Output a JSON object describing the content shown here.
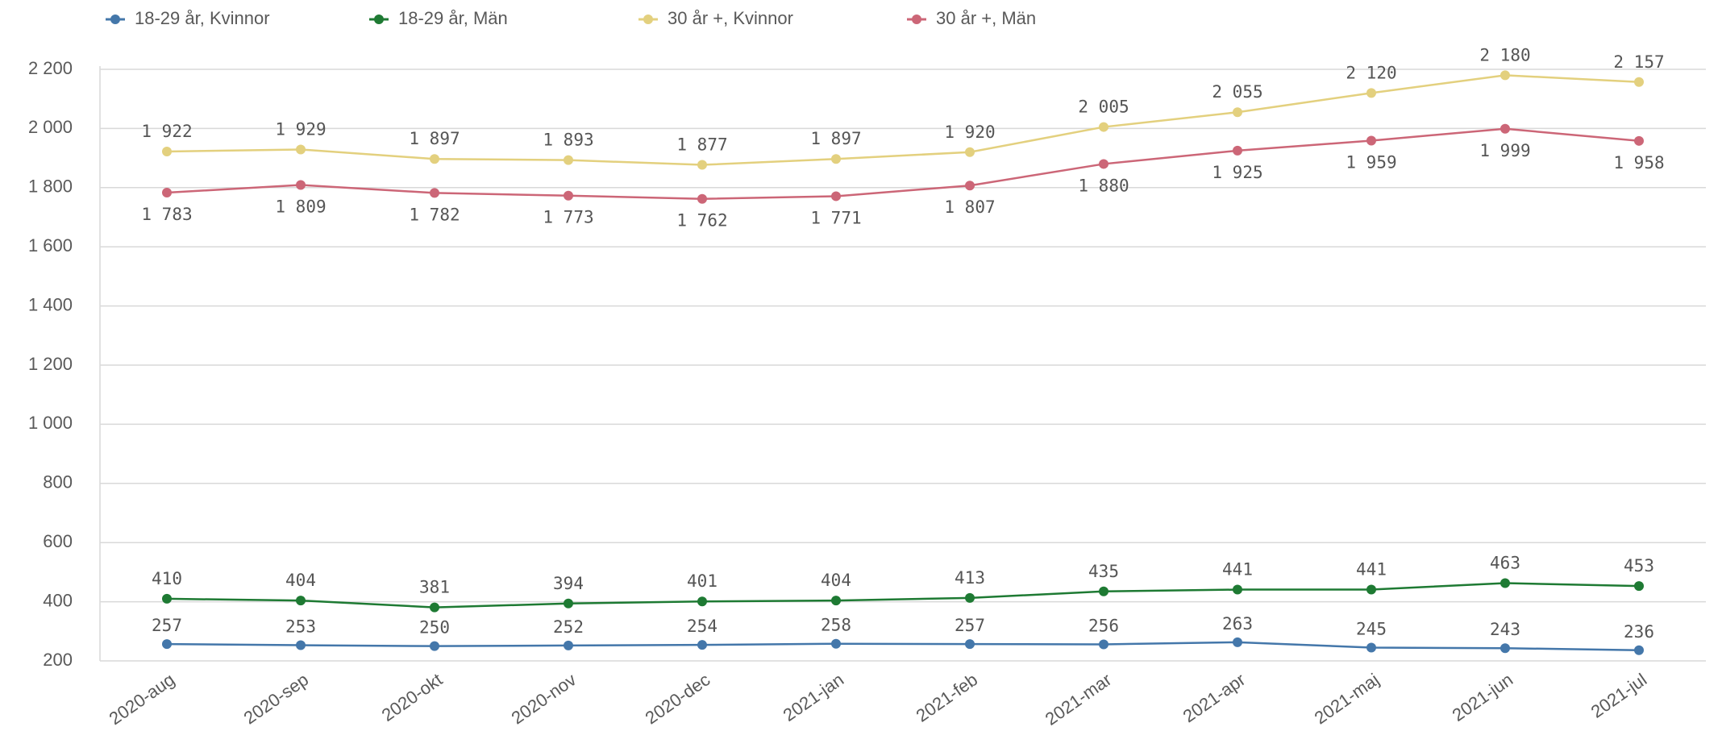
{
  "chart_data": {
    "type": "line",
    "categories": [
      "2020-aug",
      "2020-sep",
      "2020-okt",
      "2020-nov",
      "2020-dec",
      "2021-jan",
      "2021-feb",
      "2021-mar",
      "2021-apr",
      "2021-maj",
      "2021-jun",
      "2021-jul"
    ],
    "series": [
      {
        "name": "18-29 år, Kvinnor",
        "color": "#4477aa",
        "values": [
          257,
          253,
          250,
          252,
          254,
          258,
          257,
          256,
          263,
          245,
          243,
          236
        ]
      },
      {
        "name": "18-29 år, Män",
        "color": "#1e7a33",
        "values": [
          410,
          404,
          381,
          394,
          401,
          404,
          413,
          435,
          441,
          441,
          463,
          453
        ]
      },
      {
        "name": "30 år +, Kvinnor",
        "color": "#e3d07e",
        "values": [
          1922,
          1929,
          1897,
          1893,
          1877,
          1897,
          1920,
          2005,
          2055,
          2120,
          2180,
          2157
        ],
        "value_labels": [
          "1 922",
          "1 929",
          "1 897",
          "1 893",
          "1 877",
          "1 897",
          "1 920",
          "2 005",
          "2 055",
          "2 120",
          "2 180",
          "2 157"
        ]
      },
      {
        "name": "30 år +, Män",
        "color": "#cc6677",
        "values": [
          1783,
          1809,
          1782,
          1773,
          1762,
          1771,
          1807,
          1880,
          1925,
          1959,
          1999,
          1958
        ],
        "value_labels": [
          "1 783",
          "1 809",
          "1 782",
          "1 773",
          "1 762",
          "1 771",
          "1 807",
          "1 880",
          "1 925",
          "1 959",
          "1 999",
          "1 958"
        ]
      }
    ],
    "ylim": [
      200,
      2200
    ],
    "yticks": [
      200,
      400,
      600,
      800,
      {
        "value": 1000,
        "label": "1 000"
      },
      {
        "value": 1200,
        "label": "1 200"
      },
      {
        "value": 1400,
        "label": "1 400"
      },
      {
        "value": 1600,
        "label": "1 600"
      },
      {
        "value": 1800,
        "label": "1 800"
      },
      {
        "value": 2000,
        "label": "2 000"
      },
      {
        "value": 2200,
        "label": "2 200"
      }
    ],
    "grid": true,
    "legend": "top"
  }
}
